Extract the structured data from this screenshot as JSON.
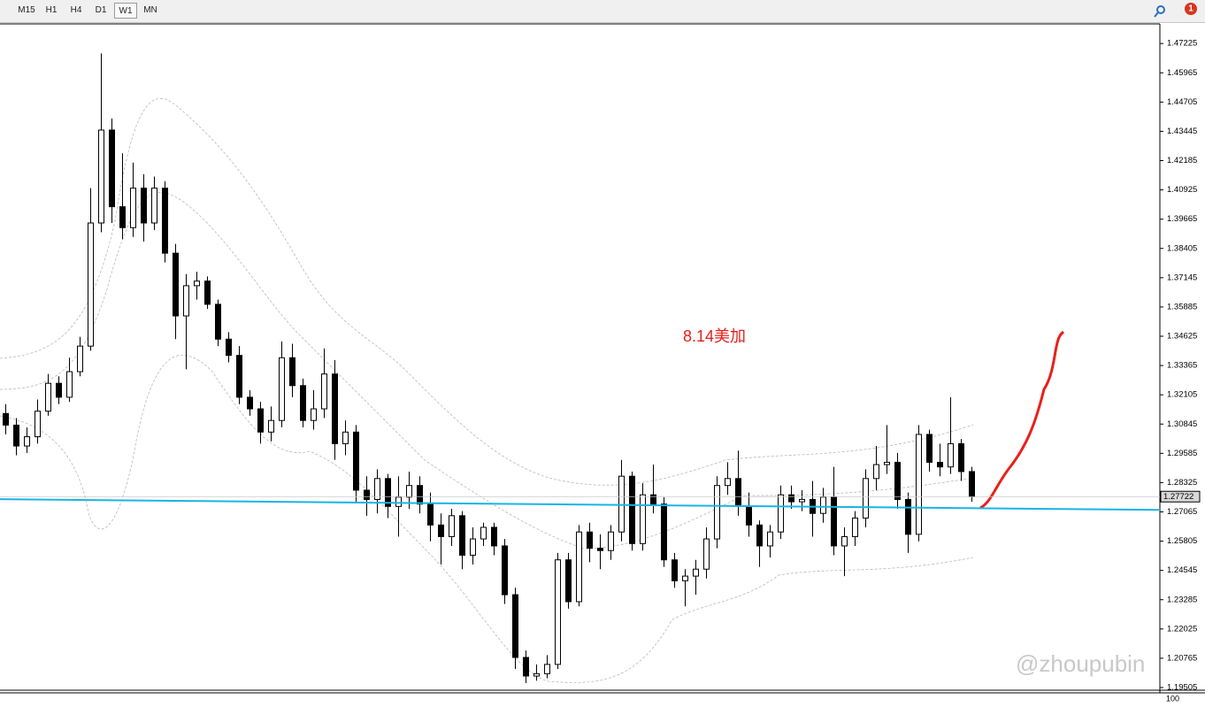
{
  "toolbar": {
    "buttons": [
      "M15",
      "H1",
      "H4",
      "D1",
      "W1",
      "MN"
    ],
    "active": "W1",
    "alert_count": 1
  },
  "annotation": "8.14美加",
  "watermark": "@zhoupubin",
  "subwindow_scale": 100,
  "chart_data": {
    "type": "candlestick",
    "ylim": [
      1.1939,
      1.4807
    ],
    "yticks": [
      1.47225,
      1.45965,
      1.44705,
      1.43445,
      1.42185,
      1.40925,
      1.39665,
      1.38405,
      1.37145,
      1.35885,
      1.34625,
      1.33365,
      1.32105,
      1.30845,
      1.29585,
      1.28325,
      1.27065,
      1.25805,
      1.24545,
      1.23285,
      1.22025,
      1.20765,
      1.19505
    ],
    "current_price": 1.27722,
    "trend_line": {
      "color": "#19b4e6",
      "values": [
        1.2761,
        1.2715
      ]
    },
    "open": [
      1.313,
      1.308,
      1.299,
      1.303,
      1.314,
      1.326,
      1.32,
      1.331,
      1.342,
      1.395,
      1.435,
      1.402,
      1.393,
      1.41,
      1.395,
      1.41,
      1.382,
      1.355,
      1.368,
      1.37,
      1.36,
      1.345,
      1.338,
      1.32,
      1.315,
      1.305,
      1.31,
      1.337,
      1.325,
      1.31,
      1.315,
      1.33,
      1.3,
      1.305,
      1.28,
      1.276,
      1.285,
      1.273,
      1.277,
      1.282,
      1.274,
      1.265,
      1.26,
      1.269,
      1.252,
      1.259,
      1.264,
      1.256,
      1.235,
      1.208,
      1.2,
      1.201,
      1.205,
      1.25,
      1.232,
      1.262,
      1.255,
      1.254,
      1.262,
      1.286,
      1.257,
      1.278,
      1.274,
      1.25,
      1.241,
      1.243,
      1.246,
      1.259,
      1.282,
      1.285,
      1.273,
      1.265,
      1.256,
      1.262,
      1.278,
      1.275,
      1.276,
      1.27,
      1.277,
      1.256,
      1.26,
      1.268,
      1.285,
      1.291,
      1.292,
      1.276,
      1.261,
      1.304,
      1.292,
      1.29,
      1.3,
      1.288
    ],
    "high": [
      1.317,
      1.311,
      1.307,
      1.319,
      1.33,
      1.329,
      1.337,
      1.346,
      1.41,
      1.468,
      1.44,
      1.425,
      1.421,
      1.416,
      1.415,
      1.413,
      1.386,
      1.373,
      1.374,
      1.372,
      1.362,
      1.348,
      1.342,
      1.323,
      1.318,
      1.316,
      1.344,
      1.343,
      1.328,
      1.323,
      1.341,
      1.336,
      1.31,
      1.308,
      1.286,
      1.289,
      1.287,
      1.286,
      1.288,
      1.286,
      1.279,
      1.27,
      1.272,
      1.271,
      1.264,
      1.266,
      1.266,
      1.259,
      1.238,
      1.211,
      1.205,
      1.209,
      1.253,
      1.253,
      1.265,
      1.266,
      1.261,
      1.265,
      1.293,
      1.288,
      1.283,
      1.291,
      1.277,
      1.253,
      1.246,
      1.25,
      1.264,
      1.286,
      1.292,
      1.297,
      1.279,
      1.267,
      1.265,
      1.282,
      1.282,
      1.28,
      1.284,
      1.281,
      1.29,
      1.264,
      1.271,
      1.289,
      1.299,
      1.308,
      1.296,
      1.279,
      1.308,
      1.306,
      1.3,
      1.32,
      1.302,
      1.29
    ],
    "low": [
      1.304,
      1.295,
      1.296,
      1.3,
      1.312,
      1.317,
      1.318,
      1.329,
      1.34,
      1.391,
      1.395,
      1.388,
      1.389,
      1.387,
      1.392,
      1.378,
      1.345,
      1.332,
      1.362,
      1.358,
      1.342,
      1.335,
      1.317,
      1.312,
      1.3,
      1.301,
      1.307,
      1.32,
      1.307,
      1.306,
      1.311,
      1.293,
      1.295,
      1.275,
      1.269,
      1.27,
      1.268,
      1.26,
      1.272,
      1.27,
      1.258,
      1.248,
      1.256,
      1.246,
      1.248,
      1.256,
      1.252,
      1.231,
      1.203,
      1.197,
      1.198,
      1.199,
      1.203,
      1.229,
      1.23,
      1.249,
      1.246,
      1.25,
      1.258,
      1.254,
      1.254,
      1.27,
      1.247,
      1.238,
      1.23,
      1.235,
      1.242,
      1.255,
      1.278,
      1.269,
      1.26,
      1.247,
      1.251,
      1.259,
      1.272,
      1.271,
      1.26,
      1.266,
      1.252,
      1.243,
      1.256,
      1.264,
      1.28,
      1.287,
      1.272,
      1.253,
      1.258,
      1.288,
      1.286,
      1.287,
      1.284,
      1.275
    ],
    "close": [
      1.308,
      1.299,
      1.303,
      1.314,
      1.326,
      1.32,
      1.331,
      1.342,
      1.395,
      1.435,
      1.402,
      1.393,
      1.41,
      1.395,
      1.41,
      1.382,
      1.355,
      1.368,
      1.37,
      1.36,
      1.345,
      1.338,
      1.32,
      1.315,
      1.305,
      1.31,
      1.337,
      1.325,
      1.31,
      1.315,
      1.33,
      1.3,
      1.305,
      1.28,
      1.276,
      1.285,
      1.273,
      1.277,
      1.282,
      1.274,
      1.265,
      1.26,
      1.269,
      1.252,
      1.259,
      1.264,
      1.256,
      1.235,
      1.208,
      1.2,
      1.201,
      1.205,
      1.25,
      1.232,
      1.262,
      1.255,
      1.254,
      1.262,
      1.286,
      1.257,
      1.278,
      1.274,
      1.25,
      1.241,
      1.243,
      1.246,
      1.259,
      1.282,
      1.285,
      1.273,
      1.265,
      1.256,
      1.262,
      1.278,
      1.275,
      1.276,
      1.27,
      1.277,
      1.256,
      1.26,
      1.268,
      1.285,
      1.291,
      1.292,
      1.276,
      1.261,
      1.304,
      1.292,
      1.29,
      1.3,
      1.288,
      1.2772
    ]
  }
}
